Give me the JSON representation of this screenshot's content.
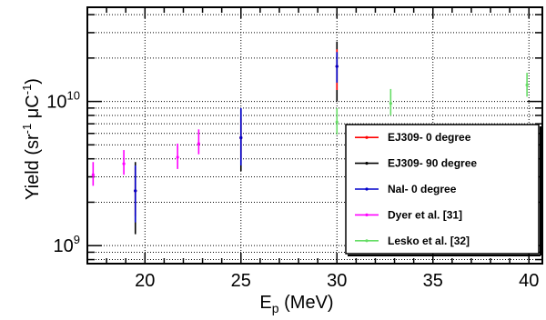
{
  "chart_data": {
    "type": "scatter",
    "title": "",
    "x_label": {
      "base": "E",
      "sub": "p",
      "rest": " (MeV)"
    },
    "y_label": {
      "pre": "Yield (sr",
      "sup1": "-1",
      "mid": " μC",
      "sup2": "-1",
      "post": ")"
    },
    "xlim": [
      17,
      40.7
    ],
    "ylim": [
      750000000.0,
      45000000000.0
    ],
    "y_scale": "log",
    "x_ticks": [
      20,
      25,
      30,
      35,
      40
    ],
    "x_tick_labels": [
      "20",
      "25",
      "30",
      "35",
      "40"
    ],
    "y_ticks": [
      1000000000.0,
      10000000000.0
    ],
    "y_tick_labels": [
      {
        "base": "10",
        "exp": "9"
      },
      {
        "base": "10",
        "exp": "10"
      }
    ],
    "grid": true,
    "legend_position": "bottom-right",
    "series": [
      {
        "name": "EJ309- 0 degree",
        "color": "#ff0000",
        "points": [
          {
            "x": 19.5,
            "y": 2400000000.0,
            "ylo": 1600000000.0,
            "yhi": 3500000000.0
          },
          {
            "x": 25.0,
            "y": 5600000000.0,
            "ylo": 4000000000.0,
            "yhi": 7600000000.0
          },
          {
            "x": 30.0,
            "y": 17500000000.0,
            "ylo": 12000000000.0,
            "yhi": 23000000000.0
          }
        ]
      },
      {
        "name": "EJ309- 90 degree",
        "color": "#000000",
        "points": [
          {
            "x": 19.5,
            "y": 2400000000.0,
            "ylo": 1200000000.0,
            "yhi": 3800000000.0
          },
          {
            "x": 25.0,
            "y": 5600000000.0,
            "ylo": 3300000000.0,
            "yhi": 8800000000.0
          },
          {
            "x": 30.0,
            "y": 17500000000.0,
            "ylo": 10000000000.0,
            "yhi": 26000000000.0
          }
        ]
      },
      {
        "name": "NaI- 0 degree",
        "color": "#0000cc",
        "points": [
          {
            "x": 19.5,
            "y": 2400000000.0,
            "ylo": 1450000000.0,
            "yhi": 3600000000.0
          },
          {
            "x": 25.0,
            "y": 5600000000.0,
            "ylo": 3600000000.0,
            "yhi": 9000000000.0
          },
          {
            "x": 30.0,
            "y": 17500000000.0,
            "ylo": 13500000000.0,
            "yhi": 22000000000.0
          }
        ]
      },
      {
        "name": "Dyer et al. [31]",
        "color": "#ff00ff",
        "points": [
          {
            "x": 17.3,
            "y": 3100000000.0,
            "ylo": 2600000000.0,
            "yhi": 3800000000.0
          },
          {
            "x": 18.9,
            "y": 3700000000.0,
            "ylo": 3100000000.0,
            "yhi": 4600000000.0
          },
          {
            "x": 21.7,
            "y": 4100000000.0,
            "ylo": 3400000000.0,
            "yhi": 5100000000.0
          },
          {
            "x": 22.8,
            "y": 5100000000.0,
            "ylo": 4300000000.0,
            "yhi": 6400000000.0
          }
        ]
      },
      {
        "name": "Lesko et al. [32]",
        "color": "#66dd66",
        "points": [
          {
            "x": 30.0,
            "y": 7200000000.0,
            "ylo": 5900000000.0,
            "yhi": 9000000000.0
          },
          {
            "x": 32.8,
            "y": 9700000000.0,
            "ylo": 8000000000.0,
            "yhi": 12200000000.0
          },
          {
            "x": 39.9,
            "y": 13000000000.0,
            "ylo": 10800000000.0,
            "yhi": 15800000000.0
          }
        ]
      }
    ],
    "legend_entries": [
      "EJ309- 0 degree",
      "EJ309- 90 degree",
      "NaI- 0 degree",
      "Dyer et al. [31]",
      "Lesko et al. [32]"
    ]
  },
  "colors": {
    "frame": "#000000",
    "grid": "#000000",
    "legend_border": "#000000",
    "background": "#ffffff"
  }
}
